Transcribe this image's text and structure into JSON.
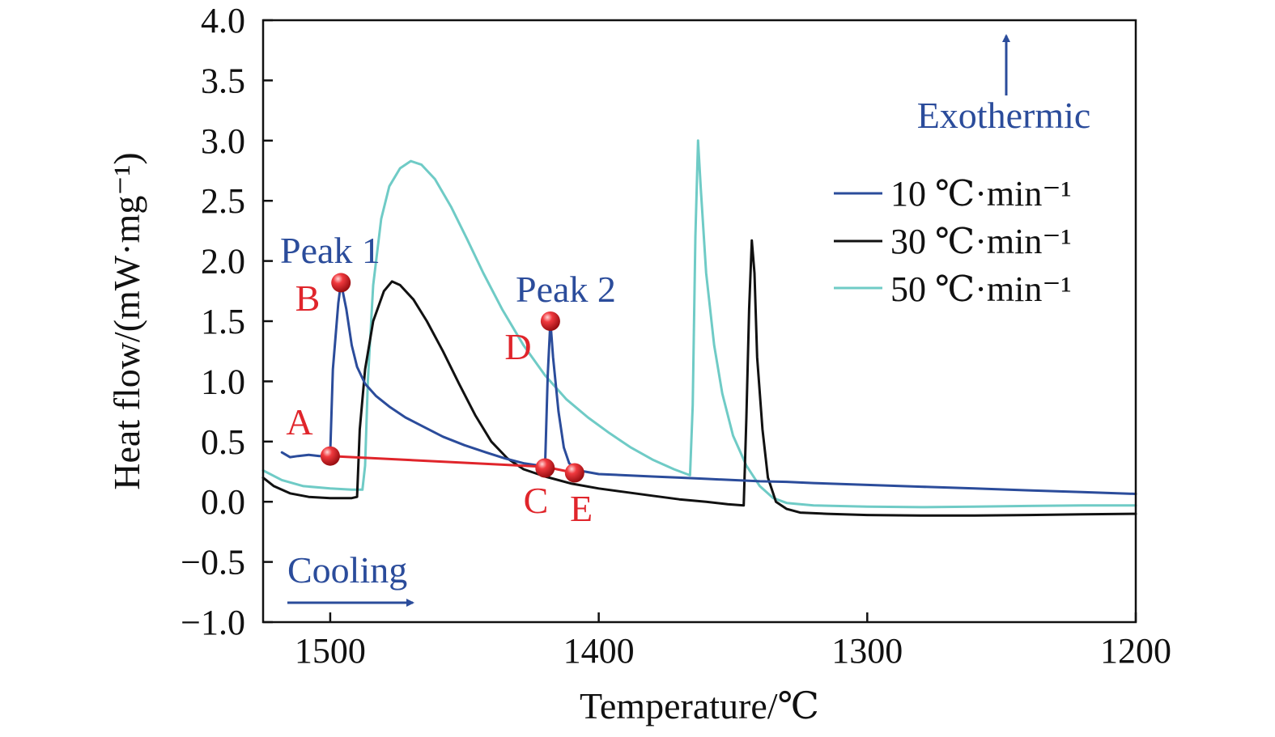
{
  "chart_data": {
    "type": "line",
    "xlabel": "Temperature/℃",
    "ylabel": "Heat flow/(mW·mg⁻¹)",
    "xlim": [
      1525,
      1200
    ],
    "ylim": [
      -1.0,
      4.0
    ],
    "x_reversed": true,
    "x_ticks": [
      {
        "value": 1500,
        "label": "1500"
      },
      {
        "value": 1400,
        "label": "1400"
      },
      {
        "value": 1300,
        "label": "1300"
      },
      {
        "value": 1200,
        "label": "1200"
      }
    ],
    "y_ticks": [
      {
        "value": 4.0,
        "label": "4.0"
      },
      {
        "value": 3.5,
        "label": "3.5"
      },
      {
        "value": 3.0,
        "label": "3.0"
      },
      {
        "value": 2.5,
        "label": "2.5"
      },
      {
        "value": 2.0,
        "label": "2.0"
      },
      {
        "value": 1.5,
        "label": "1.5"
      },
      {
        "value": 1.0,
        "label": "1.0"
      },
      {
        "value": 0.5,
        "label": "0.5"
      },
      {
        "value": 0.0,
        "label": "0.0"
      },
      {
        "value": -0.5,
        "label": "−0.5"
      },
      {
        "value": -1.0,
        "label": "−1.0"
      }
    ],
    "grid": false,
    "legend_position": "upper-right",
    "series": [
      {
        "name": "10 ℃·min⁻¹",
        "color": "#2b4c9b",
        "points": [
          [
            1518,
            0.41
          ],
          [
            1515,
            0.37
          ],
          [
            1512,
            0.38
          ],
          [
            1508,
            0.39
          ],
          [
            1504,
            0.38
          ],
          [
            1501,
            0.38
          ],
          [
            1500,
            0.4
          ],
          [
            1499,
            1.1
          ],
          [
            1497,
            1.65
          ],
          [
            1496,
            1.82
          ],
          [
            1494,
            1.6
          ],
          [
            1492,
            1.3
          ],
          [
            1490,
            1.12
          ],
          [
            1487,
            0.98
          ],
          [
            1483,
            0.88
          ],
          [
            1478,
            0.79
          ],
          [
            1472,
            0.7
          ],
          [
            1465,
            0.62
          ],
          [
            1458,
            0.54
          ],
          [
            1450,
            0.47
          ],
          [
            1442,
            0.41
          ],
          [
            1435,
            0.36
          ],
          [
            1428,
            0.32
          ],
          [
            1422,
            0.3
          ],
          [
            1420,
            0.29
          ],
          [
            1419,
            1.05
          ],
          [
            1418,
            1.5
          ],
          [
            1417,
            1.2
          ],
          [
            1415,
            0.75
          ],
          [
            1413,
            0.45
          ],
          [
            1411,
            0.32
          ],
          [
            1408,
            0.26
          ],
          [
            1405,
            0.25
          ],
          [
            1400,
            0.23
          ],
          [
            1390,
            0.22
          ],
          [
            1380,
            0.21
          ],
          [
            1370,
            0.2
          ],
          [
            1360,
            0.19
          ],
          [
            1350,
            0.18
          ],
          [
            1340,
            0.17
          ],
          [
            1330,
            0.165
          ],
          [
            1320,
            0.155
          ],
          [
            1300,
            0.14
          ],
          [
            1280,
            0.125
          ],
          [
            1260,
            0.11
          ],
          [
            1240,
            0.095
          ],
          [
            1220,
            0.08
          ],
          [
            1200,
            0.065
          ]
        ]
      },
      {
        "name": "30 ℃·min⁻¹",
        "color": "#111111",
        "points": [
          [
            1525,
            0.2
          ],
          [
            1521,
            0.13
          ],
          [
            1515,
            0.07
          ],
          [
            1508,
            0.04
          ],
          [
            1500,
            0.03
          ],
          [
            1495,
            0.03
          ],
          [
            1492,
            0.03
          ],
          [
            1490,
            0.04
          ],
          [
            1489,
            0.6
          ],
          [
            1487,
            1.1
          ],
          [
            1484,
            1.5
          ],
          [
            1480,
            1.75
          ],
          [
            1477,
            1.83
          ],
          [
            1474,
            1.8
          ],
          [
            1469,
            1.68
          ],
          [
            1464,
            1.5
          ],
          [
            1458,
            1.25
          ],
          [
            1452,
            0.98
          ],
          [
            1446,
            0.72
          ],
          [
            1440,
            0.5
          ],
          [
            1434,
            0.36
          ],
          [
            1428,
            0.27
          ],
          [
            1420,
            0.21
          ],
          [
            1410,
            0.15
          ],
          [
            1400,
            0.11
          ],
          [
            1390,
            0.08
          ],
          [
            1380,
            0.05
          ],
          [
            1370,
            0.02
          ],
          [
            1360,
            0.0
          ],
          [
            1352,
            -0.02
          ],
          [
            1346,
            -0.03
          ],
          [
            1345,
            0.7
          ],
          [
            1344,
            1.6
          ],
          [
            1343,
            2.17
          ],
          [
            1342,
            1.9
          ],
          [
            1341,
            1.2
          ],
          [
            1339,
            0.6
          ],
          [
            1337,
            0.2
          ],
          [
            1334,
            0.0
          ],
          [
            1330,
            -0.06
          ],
          [
            1325,
            -0.09
          ],
          [
            1315,
            -0.1
          ],
          [
            1300,
            -0.11
          ],
          [
            1280,
            -0.115
          ],
          [
            1260,
            -0.115
          ],
          [
            1240,
            -0.11
          ],
          [
            1220,
            -0.105
          ],
          [
            1200,
            -0.1
          ]
        ]
      },
      {
        "name": "50 ℃·min⁻¹",
        "color": "#6fcbc6",
        "points": [
          [
            1525,
            0.26
          ],
          [
            1518,
            0.18
          ],
          [
            1510,
            0.13
          ],
          [
            1500,
            0.11
          ],
          [
            1492,
            0.1
          ],
          [
            1488,
            0.1
          ],
          [
            1487,
            0.3
          ],
          [
            1486,
            1.0
          ],
          [
            1484,
            1.8
          ],
          [
            1481,
            2.35
          ],
          [
            1478,
            2.62
          ],
          [
            1474,
            2.77
          ],
          [
            1470,
            2.83
          ],
          [
            1466,
            2.8
          ],
          [
            1461,
            2.68
          ],
          [
            1455,
            2.45
          ],
          [
            1449,
            2.18
          ],
          [
            1443,
            1.9
          ],
          [
            1436,
            1.6
          ],
          [
            1428,
            1.3
          ],
          [
            1420,
            1.05
          ],
          [
            1412,
            0.85
          ],
          [
            1404,
            0.7
          ],
          [
            1396,
            0.57
          ],
          [
            1388,
            0.45
          ],
          [
            1380,
            0.35
          ],
          [
            1372,
            0.27
          ],
          [
            1366,
            0.22
          ],
          [
            1365,
            0.8
          ],
          [
            1364,
            2.2
          ],
          [
            1363,
            3.0
          ],
          [
            1362,
            2.6
          ],
          [
            1360,
            1.9
          ],
          [
            1357,
            1.3
          ],
          [
            1354,
            0.9
          ],
          [
            1350,
            0.55
          ],
          [
            1345,
            0.3
          ],
          [
            1340,
            0.13
          ],
          [
            1335,
            0.03
          ],
          [
            1330,
            -0.01
          ],
          [
            1320,
            -0.03
          ],
          [
            1300,
            -0.04
          ],
          [
            1280,
            -0.045
          ],
          [
            1260,
            -0.04
          ],
          [
            1240,
            -0.035
          ],
          [
            1220,
            -0.03
          ],
          [
            1200,
            -0.03
          ]
        ]
      }
    ],
    "baseline": {
      "color": "#e0252b",
      "points": [
        [
          1500,
          0.38
        ],
        [
          1420,
          0.29
        ],
        [
          1409,
          0.24
        ]
      ]
    },
    "markers": [
      {
        "label": "A",
        "x": 1500,
        "y": 0.38
      },
      {
        "label": "B",
        "x": 1496,
        "y": 1.82
      },
      {
        "label": "C",
        "x": 1420,
        "y": 0.28
      },
      {
        "label": "D",
        "x": 1418,
        "y": 1.5
      },
      {
        "label": "E",
        "x": 1409,
        "y": 0.24
      }
    ],
    "annotations": {
      "peak1": "Peak 1",
      "peak2": "Peak 2",
      "exothermic": "Exothermic",
      "cooling": "Cooling"
    }
  }
}
